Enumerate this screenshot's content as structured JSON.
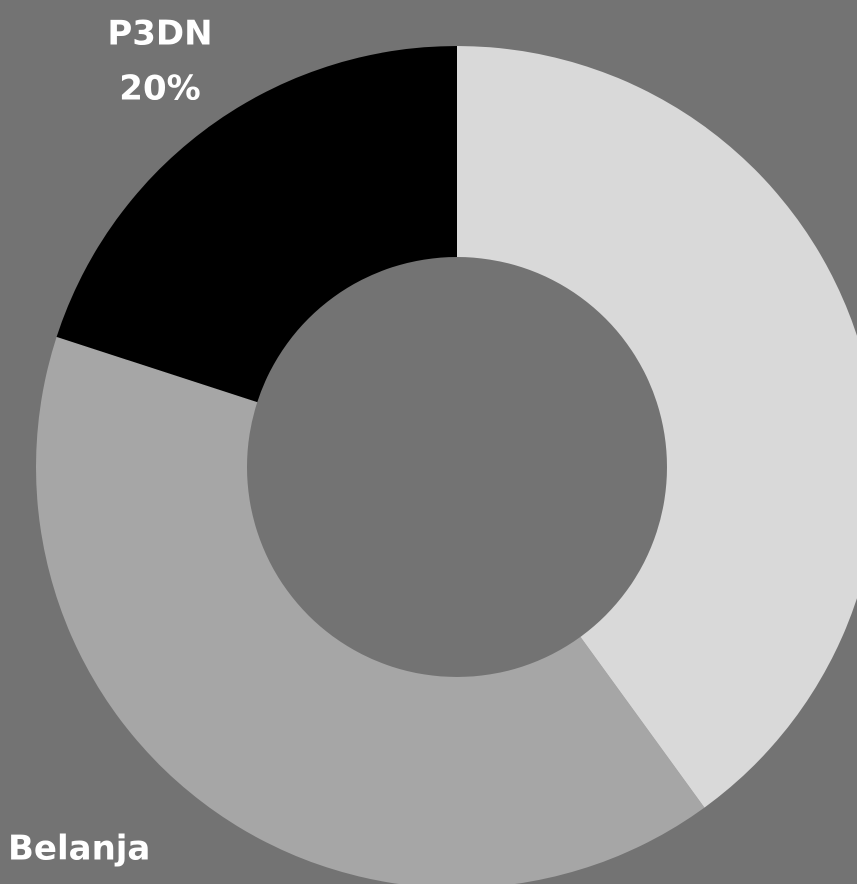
{
  "chart_data": {
    "type": "donut",
    "categories": [
      null,
      "Belanja",
      "P3DN"
    ],
    "values": [
      40,
      40,
      20
    ],
    "value_labels": [
      null,
      null,
      "20%"
    ],
    "colors": [
      "#d9d9d9",
      "#a6a6a6",
      "#000000"
    ]
  }
}
